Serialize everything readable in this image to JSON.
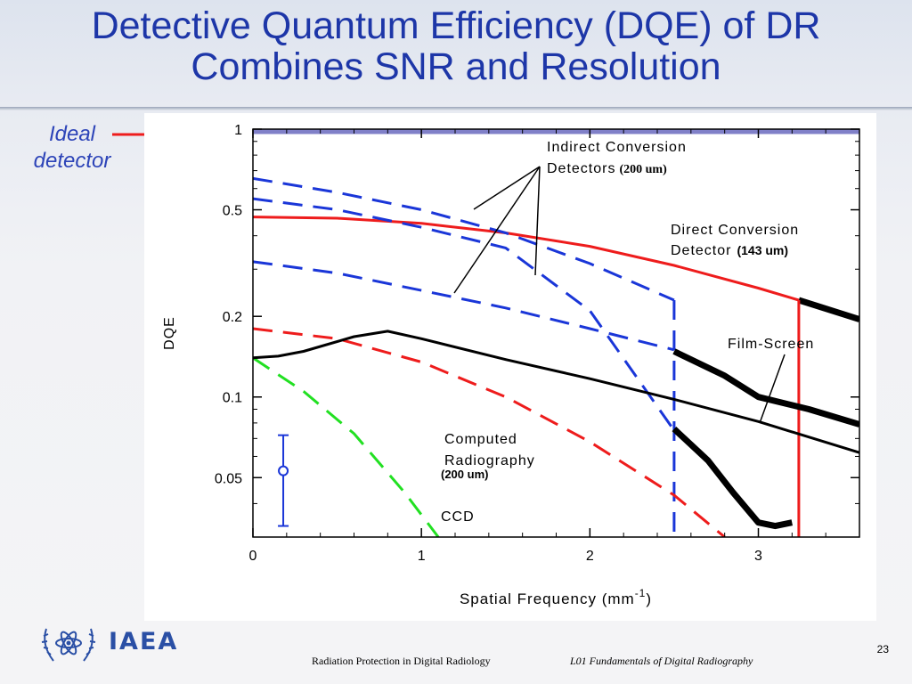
{
  "slide": {
    "title_line1": "Detective Quantum Efficiency (DQE) of DR",
    "title_line2": "Combines SNR and Resolution",
    "ideal_label_line1": "Ideal",
    "ideal_label_line2": "detector",
    "logo_text": "IAEA",
    "footer_left": "Radiation Protection in Digital Radiology",
    "footer_right": "L01 Fundamentals of Digital Radiography",
    "page_number": "23"
  },
  "colors": {
    "title": "#1d36a8",
    "ideal_arrow": "#ee1c1c",
    "blue_series": "#1a36d8",
    "red_series": "#ee1c1c",
    "green_series": "#22e022",
    "black_series": "#000000",
    "ideal_band": "#8080c8"
  },
  "chart_data": {
    "type": "line",
    "xlabel": "Spatial Frequency (mm",
    "xlabel_superscript": "-1",
    "xlabel_close": ")",
    "ylabel": "DQE",
    "y_scale": "log",
    "xlim": [
      0,
      3.6
    ],
    "ylim": [
      0.03,
      1.0
    ],
    "xticks": [
      0,
      1,
      2,
      3
    ],
    "ytick_values": [
      0.05,
      0.1,
      0.2,
      0.5,
      1
    ],
    "ytick_labels": [
      "0.05",
      "0.1",
      "0.2",
      "0.5",
      "1"
    ],
    "grid": false,
    "annotations": {
      "indirect_line1": "Indirect Conversion",
      "indirect_line2": "Detectors",
      "indirect_size": "(200 um)",
      "direct_line1": "Direct Conversion",
      "direct_line2": "Detector",
      "direct_size": "(143 um)",
      "film_screen": "Film-Screen",
      "cr_line1": "Computed",
      "cr_line2": "Radiography",
      "cr_size": "(200 um)",
      "ccd": "CCD"
    },
    "error_bar": {
      "x": 0.18,
      "y": 0.053,
      "low": 0.033,
      "high": 0.072
    },
    "series": [
      {
        "key": "ideal",
        "style": "band",
        "color": "#8080c8",
        "x": [
          0,
          3.6
        ],
        "y": [
          0.985,
          0.985
        ]
      },
      {
        "key": "direct",
        "style": "solid",
        "color": "#ee1c1c",
        "x": [
          0,
          0.5,
          1.0,
          1.5,
          2.0,
          2.5,
          3.0,
          3.24
        ],
        "y": [
          0.47,
          0.465,
          0.445,
          0.41,
          0.365,
          0.31,
          0.255,
          0.23
        ]
      },
      {
        "key": "direct-end",
        "style": "thick",
        "color": "#000000",
        "x": [
          3.24,
          3.6
        ],
        "y": [
          0.23,
          0.195
        ]
      },
      {
        "key": "direct-cutoff",
        "style": "solid",
        "color": "#ee1c1c",
        "x": [
          3.24,
          3.24
        ],
        "y": [
          0.23,
          0.03
        ]
      },
      {
        "key": "indirect-a",
        "style": "dashed",
        "color": "#1a36d8",
        "x": [
          0,
          0.5,
          1.0,
          1.5,
          2.0,
          2.5
        ],
        "y": [
          0.655,
          0.58,
          0.5,
          0.41,
          0.315,
          0.23
        ]
      },
      {
        "key": "indirect-a-cutoff",
        "style": "dashed",
        "color": "#1a36d8",
        "x": [
          2.5,
          2.5
        ],
        "y": [
          0.23,
          0.03
        ]
      },
      {
        "key": "indirect-b",
        "style": "dashed",
        "color": "#1a36d8",
        "x": [
          0,
          0.5,
          1.0,
          1.5,
          2.0,
          2.5
        ],
        "y": [
          0.55,
          0.5,
          0.43,
          0.36,
          0.21,
          0.075
        ]
      },
      {
        "key": "indirect-c",
        "style": "dashed",
        "color": "#1a36d8",
        "x": [
          0,
          0.5,
          1.0,
          1.5,
          2.0,
          2.5
        ],
        "y": [
          0.32,
          0.29,
          0.25,
          0.215,
          0.18,
          0.15
        ]
      },
      {
        "key": "cr",
        "style": "dashed",
        "color": "#ee1c1c",
        "x": [
          0,
          0.5,
          1.0,
          1.5,
          2.0,
          2.5,
          2.8
        ],
        "y": [
          0.18,
          0.165,
          0.135,
          0.1,
          0.068,
          0.043,
          0.03
        ]
      },
      {
        "key": "ccd",
        "style": "dashed",
        "color": "#22e022",
        "x": [
          0,
          0.3,
          0.6,
          0.9,
          1.1
        ],
        "y": [
          0.14,
          0.105,
          0.073,
          0.044,
          0.03
        ]
      },
      {
        "key": "film-screen",
        "style": "solid",
        "color": "#000000",
        "x": [
          0,
          0.15,
          0.3,
          0.6,
          0.8,
          1.0,
          1.5,
          2.0,
          2.5,
          3.0,
          3.6
        ],
        "y": [
          0.14,
          0.142,
          0.148,
          0.168,
          0.176,
          0.165,
          0.138,
          0.117,
          0.098,
          0.081,
          0.062
        ]
      },
      {
        "key": "film-screen-thick",
        "style": "thick",
        "color": "#000000",
        "x": [
          2.5,
          2.8,
          3.0,
          3.3,
          3.6
        ],
        "y": [
          0.148,
          0.12,
          0.1,
          0.09,
          0.079
        ]
      },
      {
        "key": "indirect-b-thick",
        "style": "thick",
        "color": "#000000",
        "x": [
          2.5,
          2.7,
          2.85,
          3.0,
          3.1,
          3.2
        ],
        "y": [
          0.076,
          0.058,
          0.044,
          0.034,
          0.033,
          0.034
        ]
      }
    ]
  }
}
